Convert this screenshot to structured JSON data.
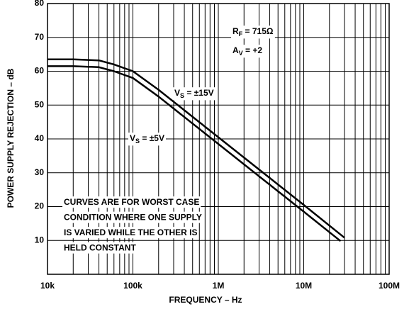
{
  "chart_data": {
    "type": "line",
    "xlabel": "FREQUENCY – Hz",
    "ylabel": "POWER SUPPLY REJECTION – dB",
    "xscale": "log",
    "grid": true,
    "minor_grid": true,
    "color": "#000000",
    "xlim": [
      10000,
      100000000
    ],
    "ylim": [
      0,
      80
    ],
    "xticks": [
      {
        "value": 10000,
        "label": "10k"
      },
      {
        "value": 100000,
        "label": "100k"
      },
      {
        "value": 1000000,
        "label": "1M"
      },
      {
        "value": 10000000,
        "label": "10M"
      },
      {
        "value": 100000000,
        "label": "100M"
      }
    ],
    "yticks": [
      10,
      20,
      30,
      40,
      50,
      60,
      70,
      80
    ],
    "series": [
      {
        "name": [
          "V",
          "S",
          " = ±15V"
        ],
        "color": "#000000",
        "x": [
          10000,
          20000,
          40000,
          60000,
          100000,
          200000,
          1000000,
          10000000,
          30000000
        ],
        "values": [
          63.5,
          63.5,
          63.2,
          62,
          60,
          54.5,
          40.5,
          20.5,
          10.8
        ]
      },
      {
        "name": [
          "V",
          "S",
          " = ±5V"
        ],
        "color": "#000000",
        "x": [
          10000,
          20000,
          40000,
          60000,
          100000,
          200000,
          1000000,
          10000000,
          27000000
        ],
        "values": [
          61.5,
          61.5,
          61.2,
          60,
          58,
          52.5,
          38.5,
          18.5,
          9.8
        ]
      }
    ],
    "annotations": [
      {
        "parts": [
          "R",
          "F",
          " = 715Ω"
        ]
      },
      {
        "parts": [
          "A",
          "V",
          " = +2"
        ]
      }
    ],
    "note": [
      "CURVES ARE FOR WORST CASE",
      "CONDITION WHERE ONE SUPPLY",
      "IS VARIED WHILE THE OTHER IS",
      "HELD CONSTANT"
    ]
  }
}
